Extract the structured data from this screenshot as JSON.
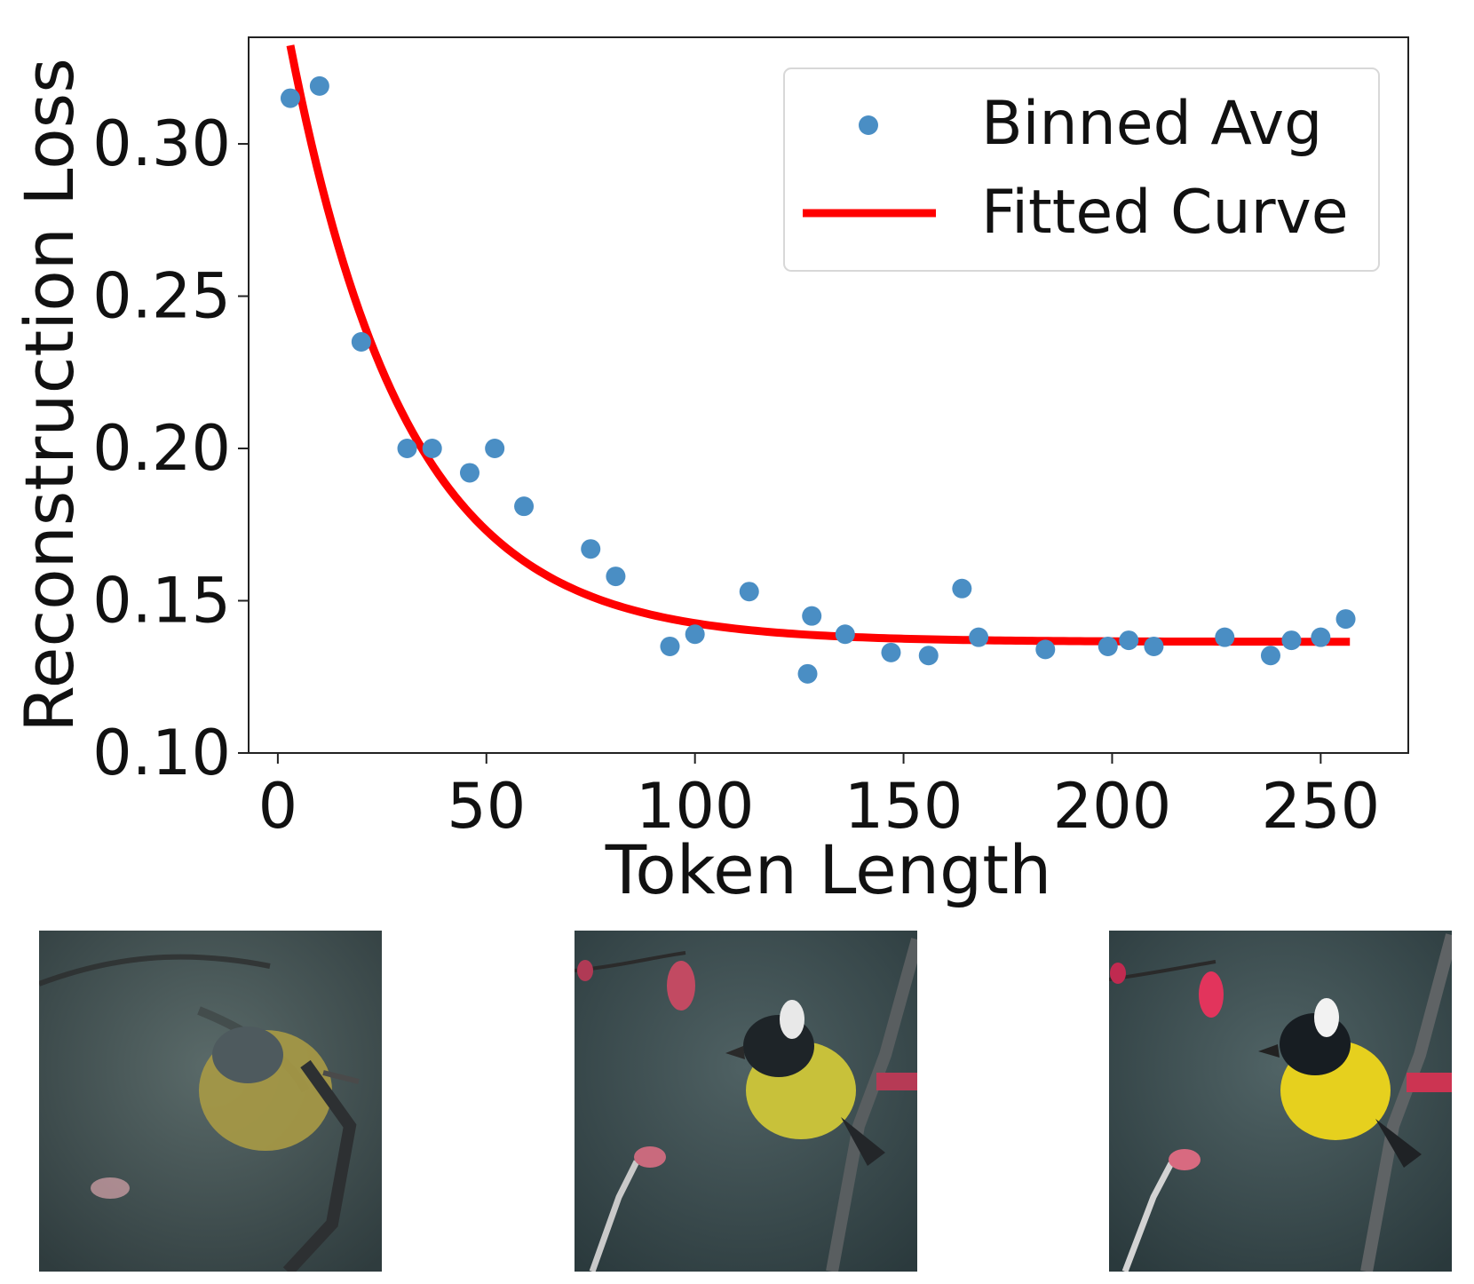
{
  "chart_data": {
    "type": "scatter",
    "title": "",
    "xlabel": "Token Length",
    "ylabel": "Reconstruction Loss",
    "xlim": [
      -7,
      271
    ],
    "ylim": [
      0.1,
      0.335
    ],
    "xticks": [
      0,
      50,
      100,
      150,
      200,
      250
    ],
    "xtick_labels": [
      "0",
      "50",
      "100",
      "150",
      "200",
      "250"
    ],
    "yticks": [
      0.1,
      0.15,
      0.2,
      0.25,
      0.3
    ],
    "ytick_labels": [
      "0.10",
      "0.15",
      "0.20",
      "0.25",
      "0.30"
    ],
    "grid": false,
    "legend_position": "top-right",
    "series": [
      {
        "name": "Binned Avg",
        "kind": "scatter",
        "color": "#4a8ec4",
        "x": [
          3,
          10,
          20,
          31,
          37,
          46,
          52,
          59,
          75,
          81,
          94,
          100,
          113,
          127,
          128,
          136,
          147,
          156,
          164,
          168,
          184,
          199,
          204,
          210,
          227,
          238,
          243,
          250,
          256
        ],
        "y": [
          0.315,
          0.319,
          0.235,
          0.2,
          0.2,
          0.192,
          0.2,
          0.181,
          0.167,
          0.158,
          0.135,
          0.139,
          0.153,
          0.126,
          0.145,
          0.139,
          0.133,
          0.132,
          0.154,
          0.138,
          0.134,
          0.135,
          0.137,
          0.135,
          0.138,
          0.132,
          0.137,
          0.138,
          0.144
        ]
      },
      {
        "name": "Fitted Curve",
        "kind": "line",
        "color": "#ff0000",
        "model": "a*exp(-x/tau)+c",
        "params": {
          "a": 0.218,
          "tau": 28,
          "c": 0.1365
        },
        "x_range": [
          3,
          257
        ]
      }
    ]
  },
  "images": [
    {
      "label": "reconstruction-short-tokens"
    },
    {
      "label": "reconstruction-medium-tokens"
    },
    {
      "label": "reconstruction-long-tokens"
    }
  ]
}
